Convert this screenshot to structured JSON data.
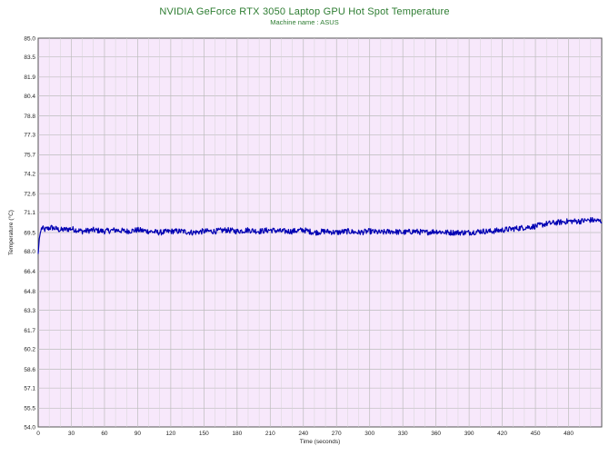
{
  "chart_data": {
    "type": "line",
    "title": "NVIDIA GeForce RTX 3050 Laptop GPU Hot Spot Temperature",
    "subtitle": "Machine name : ASUS",
    "xlabel": "Time (seconds)",
    "ylabel": "Temperature (°C)",
    "xlim": [
      0,
      510
    ],
    "ylim": [
      54.0,
      85.0
    ],
    "grid": true,
    "x_ticks": [
      "0",
      "30",
      "60",
      "90",
      "120",
      "150",
      "180",
      "210",
      "240",
      "270",
      "300",
      "330",
      "360",
      "390",
      "420",
      "450",
      "480"
    ],
    "y_ticks": [
      "85.0",
      "83.5",
      "81.9",
      "80.4",
      "78.8",
      "77.3",
      "75.7",
      "74.2",
      "72.6",
      "71.1",
      "69.5",
      "68.0",
      "66.4",
      "64.8",
      "63.3",
      "61.7",
      "60.2",
      "58.6",
      "57.1",
      "55.5",
      "54.0"
    ],
    "series": [
      {
        "color": "#0000b3",
        "x": [
          0,
          1,
          2,
          3,
          4,
          5,
          8,
          12,
          16,
          20,
          30,
          40,
          50,
          60,
          70,
          80,
          90,
          100,
          110,
          120,
          130,
          140,
          150,
          160,
          170,
          180,
          190,
          200,
          210,
          220,
          230,
          240,
          250,
          260,
          270,
          280,
          290,
          300,
          310,
          320,
          330,
          340,
          350,
          360,
          370,
          380,
          390,
          400,
          410,
          420,
          430,
          440,
          450,
          460,
          470,
          480,
          490,
          500,
          510
        ],
        "y": [
          67.8,
          69.0,
          69.5,
          69.8,
          69.9,
          69.7,
          69.8,
          69.9,
          69.8,
          69.7,
          69.8,
          69.6,
          69.7,
          69.6,
          69.7,
          69.6,
          69.7,
          69.6,
          69.5,
          69.6,
          69.6,
          69.5,
          69.6,
          69.6,
          69.7,
          69.6,
          69.7,
          69.6,
          69.7,
          69.6,
          69.6,
          69.7,
          69.5,
          69.6,
          69.5,
          69.6,
          69.5,
          69.6,
          69.5,
          69.6,
          69.5,
          69.6,
          69.5,
          69.6,
          69.5,
          69.5,
          69.5,
          69.6,
          69.6,
          69.7,
          69.8,
          69.9,
          70.0,
          70.2,
          70.3,
          70.4,
          70.4,
          70.5,
          70.4
        ]
      }
    ]
  }
}
